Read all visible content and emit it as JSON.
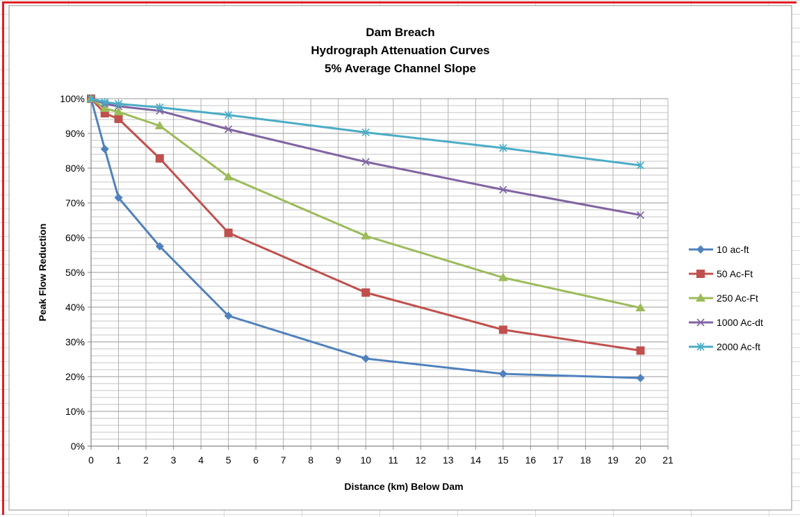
{
  "chart_data": {
    "type": "line",
    "title": [
      "Dam Breach",
      "Hydrograph Attenuation Curves",
      "5% Average Channel Slope"
    ],
    "xlabel": "Distance (km) Below Dam",
    "ylabel": "Peak Flow Reduction",
    "xlim": [
      0,
      21
    ],
    "ylim": [
      0,
      1
    ],
    "xticks": [
      0,
      1,
      2,
      3,
      4,
      5,
      6,
      7,
      8,
      9,
      10,
      11,
      12,
      13,
      14,
      15,
      16,
      17,
      18,
      19,
      20,
      21
    ],
    "yticks": [
      0,
      0.1,
      0.2,
      0.3,
      0.4,
      0.5,
      0.6,
      0.7,
      0.8,
      0.9,
      1.0
    ],
    "ytick_labels": [
      "0%",
      "10%",
      "20%",
      "30%",
      "40%",
      "50%",
      "60%",
      "70%",
      "80%",
      "90%",
      "100%"
    ],
    "grid": true,
    "legend_position": "right",
    "series": [
      {
        "name": "10 ac-ft",
        "color": "#4f81bd",
        "marker": "diamond",
        "x": [
          0,
          0.5,
          1,
          2.5,
          5,
          10,
          15,
          20
        ],
        "y": [
          1.0,
          0.855,
          0.715,
          0.575,
          0.375,
          0.252,
          0.208,
          0.196
        ]
      },
      {
        "name": "50 Ac-Ft",
        "color": "#c0504d",
        "marker": "square",
        "x": [
          0,
          0.5,
          1,
          2.5,
          5,
          10,
          15,
          20
        ],
        "y": [
          1.0,
          0.958,
          0.942,
          0.828,
          0.614,
          0.442,
          0.335,
          0.275
        ]
      },
      {
        "name": "250 Ac-Ft",
        "color": "#9bbb59",
        "marker": "triangle",
        "x": [
          0,
          0.5,
          1,
          2.5,
          5,
          10,
          15,
          20
        ],
        "y": [
          1.0,
          0.972,
          0.962,
          0.922,
          0.775,
          0.605,
          0.485,
          0.398
        ]
      },
      {
        "name": "1000 Ac-dt",
        "color": "#8064a2",
        "marker": "x",
        "x": [
          0,
          0.5,
          1,
          2.5,
          5,
          10,
          15,
          20
        ],
        "y": [
          1.0,
          0.985,
          0.978,
          0.965,
          0.912,
          0.818,
          0.738,
          0.665
        ]
      },
      {
        "name": "2000 Ac-ft",
        "color": "#4bacc6",
        "marker": "star",
        "x": [
          0,
          0.5,
          1,
          2.5,
          5,
          10,
          15,
          20
        ],
        "y": [
          1.0,
          0.99,
          0.985,
          0.975,
          0.953,
          0.903,
          0.858,
          0.808
        ]
      }
    ]
  }
}
